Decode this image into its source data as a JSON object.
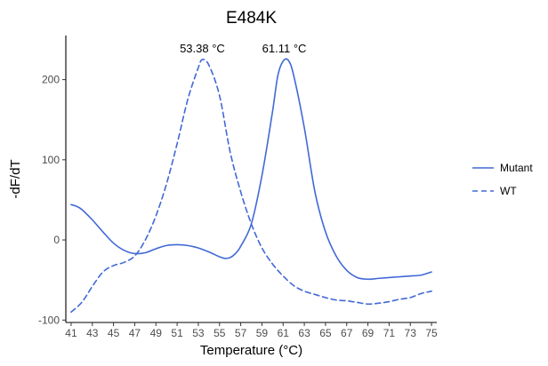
{
  "chart_data": {
    "type": "line",
    "title": "E484K",
    "xlabel": "Temperature (°C)",
    "ylabel": "-dF/dT",
    "xlim": [
      40.5,
      75.5
    ],
    "ylim": [
      -103,
      255
    ],
    "x_ticks": [
      41,
      43,
      45,
      47,
      49,
      51,
      53,
      55,
      57,
      59,
      61,
      63,
      65,
      67,
      69,
      71,
      73,
      75
    ],
    "x_tick_labels": [
      "41",
      "43",
      "45",
      "47",
      "49",
      "51",
      "53",
      "55",
      "57",
      "59",
      "61",
      "63",
      "65",
      "67",
      "69",
      "71",
      "73",
      "75"
    ],
    "y_ticks": [
      -100,
      0,
      100,
      200
    ],
    "y_tick_labels": [
      "-100",
      "0",
      "100",
      "200"
    ],
    "grid": false,
    "legend_position": "right",
    "series": [
      {
        "name": "Mutant",
        "color": "#4169d6",
        "linestyle": "solid",
        "points": [
          [
            41,
            44
          ],
          [
            41.5,
            42
          ],
          [
            42,
            38
          ],
          [
            43,
            25
          ],
          [
            44,
            10
          ],
          [
            45,
            -4
          ],
          [
            46,
            -13
          ],
          [
            47,
            -17
          ],
          [
            48,
            -16
          ],
          [
            49,
            -11
          ],
          [
            50,
            -7
          ],
          [
            51,
            -6
          ],
          [
            52,
            -7
          ],
          [
            53,
            -10
          ],
          [
            54,
            -15
          ],
          [
            55,
            -21
          ],
          [
            55.5,
            -23
          ],
          [
            56,
            -22
          ],
          [
            56.5,
            -17
          ],
          [
            57,
            -8
          ],
          [
            58,
            20
          ],
          [
            59,
            80
          ],
          [
            60,
            160
          ],
          [
            60.5,
            205
          ],
          [
            61,
            223
          ],
          [
            61.5,
            224
          ],
          [
            62,
            205
          ],
          [
            63,
            140
          ],
          [
            64,
            60
          ],
          [
            65,
            10
          ],
          [
            66,
            -20
          ],
          [
            67,
            -38
          ],
          [
            68,
            -47
          ],
          [
            69,
            -49
          ],
          [
            70,
            -48
          ],
          [
            71,
            -47
          ],
          [
            72,
            -46
          ],
          [
            73,
            -45
          ],
          [
            74,
            -44
          ],
          [
            75,
            -40
          ]
        ]
      },
      {
        "name": "WT",
        "color": "#4169d6",
        "linestyle": "dashed",
        "points": [
          [
            41,
            -90
          ],
          [
            42,
            -78
          ],
          [
            43,
            -58
          ],
          [
            44,
            -40
          ],
          [
            45,
            -32
          ],
          [
            46,
            -28
          ],
          [
            47,
            -20
          ],
          [
            48,
            0
          ],
          [
            49,
            30
          ],
          [
            50,
            70
          ],
          [
            51,
            120
          ],
          [
            52,
            175
          ],
          [
            53,
            215
          ],
          [
            53.38,
            225
          ],
          [
            54,
            218
          ],
          [
            55,
            180
          ],
          [
            56,
            110
          ],
          [
            57,
            60
          ],
          [
            58,
            20
          ],
          [
            59,
            -10
          ],
          [
            60,
            -30
          ],
          [
            61,
            -45
          ],
          [
            62,
            -57
          ],
          [
            63,
            -64
          ],
          [
            64,
            -68
          ],
          [
            65,
            -72
          ],
          [
            66,
            -75
          ],
          [
            67,
            -76
          ],
          [
            68,
            -78
          ],
          [
            69,
            -80
          ],
          [
            70,
            -79
          ],
          [
            71,
            -77
          ],
          [
            72,
            -74
          ],
          [
            73,
            -72
          ],
          [
            74,
            -67
          ],
          [
            75,
            -64
          ]
        ]
      }
    ],
    "annotations": [
      {
        "text": "53.38 °C",
        "x": 53.38,
        "y": 225
      },
      {
        "text": "61.11 °C",
        "x": 61.11,
        "y": 225
      }
    ]
  }
}
